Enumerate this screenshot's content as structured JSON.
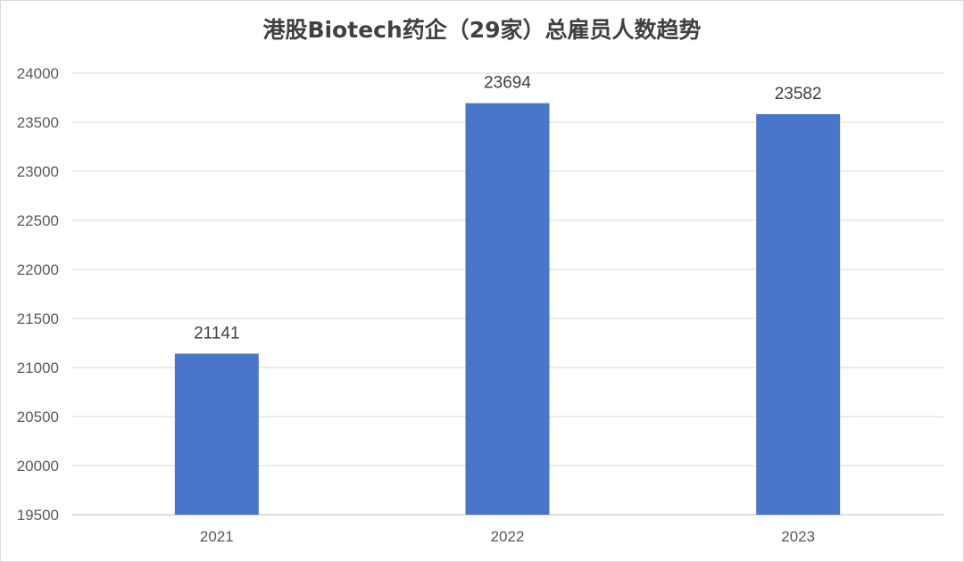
{
  "chart_data": {
    "type": "bar",
    "title": "港股Biotech药企（29家）总雇员人数趋势",
    "categories": [
      "2021",
      "2022",
      "2023"
    ],
    "values": [
      21141,
      23694,
      23582
    ],
    "data_labels": [
      "21141",
      "23694",
      "23582"
    ],
    "ylim": [
      19500,
      24000
    ],
    "yticks": [
      19500,
      20000,
      20500,
      21000,
      21500,
      22000,
      22500,
      23000,
      23500,
      24000
    ],
    "xlabel": "",
    "ylabel": "",
    "grid": true,
    "legend": "none",
    "colors": {
      "bar": "#4a76c9",
      "grid": "#d9d9d9",
      "axis": "#bfbfbf"
    }
  }
}
